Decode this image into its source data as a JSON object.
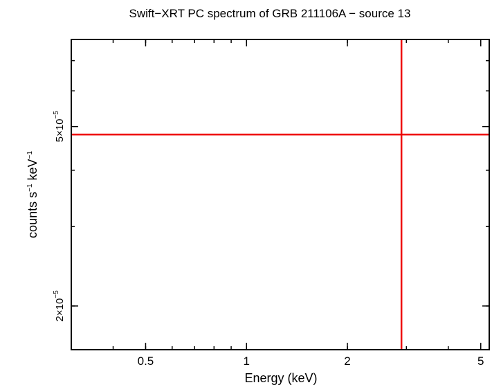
{
  "chart_data": {
    "type": "scatter",
    "title": "Swift−XRT PC spectrum of GRB 211106A − source 13",
    "xlabel": "Energy (keV)",
    "ylabel_parts": {
      "pre": "counts s",
      "sup1": "−1",
      "mid": " keV",
      "sup2": "−1"
    },
    "x_scale": "log",
    "y_scale": "log",
    "xlim": [
      0.3,
      5.3
    ],
    "ylim": [
      1.6e-05,
      7.8e-05
    ],
    "x_ticks": [
      {
        "value": 0.5,
        "label": "0.5"
      },
      {
        "value": 1,
        "label": "1"
      },
      {
        "value": 2,
        "label": "2"
      },
      {
        "value": 5,
        "label": "5"
      }
    ],
    "y_ticks": [
      {
        "value": 2e-05,
        "mantissa": "2×10",
        "exponent": "−5"
      },
      {
        "value": 5e-05,
        "mantissa": "5×10",
        "exponent": "−5"
      }
    ],
    "series": [
      {
        "color": "#ee0000",
        "points": [
          {
            "x": 2.9,
            "x_err": [
              0.3,
              5.3
            ],
            "y": 4.8e-05,
            "y_err": [
              1.6e-05,
              7.8e-05
            ]
          }
        ]
      }
    ],
    "grid": false,
    "legend": "none"
  }
}
